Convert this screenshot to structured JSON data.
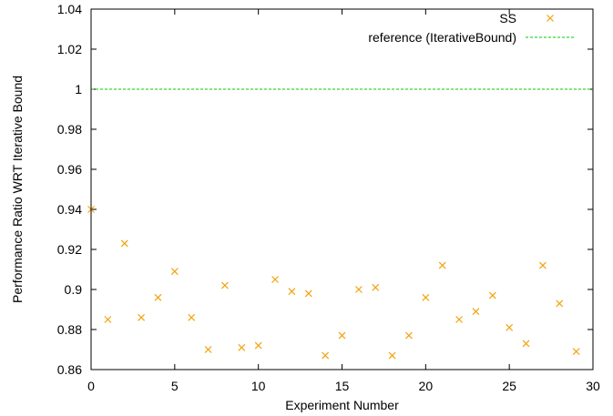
{
  "chart_data": {
    "type": "scatter",
    "xlabel": "Experiment Number",
    "ylabel": "Performance Ratio WRT Iterative Bound",
    "xlim": [
      0,
      30
    ],
    "ylim": [
      0.86,
      1.04
    ],
    "x_ticks": [
      "0",
      "5",
      "10",
      "15",
      "20",
      "25",
      "30"
    ],
    "y_ticks": [
      "0.86",
      "0.88",
      "0.9",
      "0.92",
      "0.94",
      "0.96",
      "0.98",
      "1",
      "1.02",
      "1.04"
    ],
    "grid": false,
    "legend_position": "top-right",
    "series": [
      {
        "name": "SS",
        "marker": "x",
        "color": "#f5a10a",
        "points": [
          [
            0,
            0.94
          ],
          [
            1,
            0.885
          ],
          [
            2,
            0.923
          ],
          [
            3,
            0.886
          ],
          [
            4,
            0.896
          ],
          [
            5,
            0.909
          ],
          [
            6,
            0.886
          ],
          [
            7,
            0.87
          ],
          [
            8,
            0.902
          ],
          [
            9,
            0.871
          ],
          [
            10,
            0.872
          ],
          [
            11,
            0.905
          ],
          [
            12,
            0.899
          ],
          [
            13,
            0.898
          ],
          [
            14,
            0.867
          ],
          [
            15,
            0.877
          ],
          [
            16,
            0.9
          ],
          [
            17,
            0.901
          ],
          [
            18,
            0.867
          ],
          [
            19,
            0.877
          ],
          [
            20,
            0.896
          ],
          [
            21,
            0.912
          ],
          [
            22,
            0.885
          ],
          [
            23,
            0.889
          ],
          [
            24,
            0.897
          ],
          [
            25,
            0.881
          ],
          [
            26,
            0.873
          ],
          [
            27,
            0.912
          ],
          [
            28,
            0.893
          ],
          [
            29,
            0.869
          ]
        ]
      },
      {
        "name": "reference (IterativeBound)",
        "line": "dashed",
        "color": "#00cc00",
        "y": 1.0
      }
    ]
  }
}
